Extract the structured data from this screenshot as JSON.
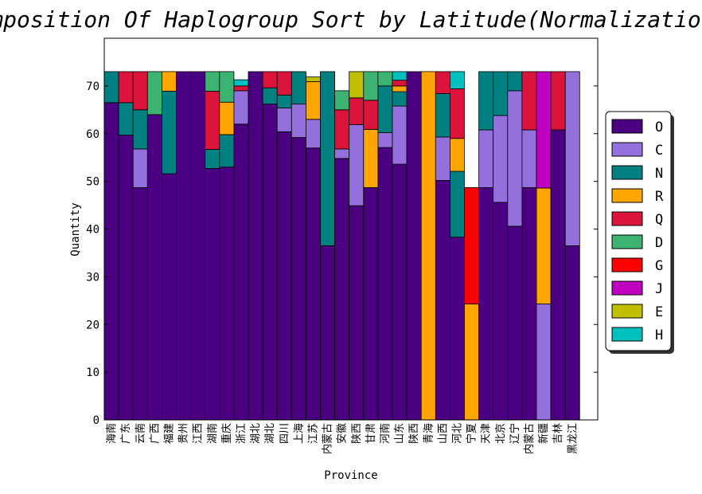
{
  "chart_data": {
    "type": "bar",
    "stacked": true,
    "title": "Composition Of Haplogroup  Sort by Latitude(Normalization)",
    "xlabel": "Province",
    "ylabel": "Quantity",
    "ylim": [
      0,
      80
    ],
    "yticks": [
      0,
      10,
      20,
      30,
      40,
      50,
      60,
      70
    ],
    "grid": false,
    "legend_position": "right",
    "categories": [
      "海南",
      "广东",
      "云南",
      "广西",
      "福建",
      "贵州",
      "江西",
      "湖南",
      "重庆",
      "浙江",
      "湖北",
      "湖北",
      "四川",
      "上海",
      "江苏",
      "内蒙古",
      "安徽",
      "陕西",
      "甘肃",
      "河南",
      "山东",
      "陕西",
      "青海",
      "山西",
      "河北",
      "宁夏",
      "天津",
      "北京",
      "辽宁",
      "内蒙古",
      "新疆",
      "吉林",
      "黑龙江"
    ],
    "series": [
      {
        "name": "O",
        "color": "#4b0082",
        "values": [
          66.5,
          59.7,
          48.7,
          64.0,
          51.6,
          73.0,
          73.0,
          52.7,
          53.0,
          62.0,
          73.0,
          66.2,
          60.4,
          59.2,
          57.0,
          36.5,
          54.8,
          44.9,
          48.7,
          57.1,
          53.6,
          73.0,
          0,
          50.2,
          38.3,
          0,
          48.7,
          45.6,
          40.6,
          48.7,
          0,
          60.8,
          36.5
        ]
      },
      {
        "name": "C",
        "color": "#9370db",
        "values": [
          0,
          0,
          8.1,
          0,
          0,
          0,
          0,
          0,
          0,
          7.0,
          0,
          0,
          5.0,
          7.0,
          6.0,
          0,
          2.0,
          17.0,
          0,
          3.1,
          12.2,
          0,
          0,
          9.1,
          0,
          0,
          12.1,
          18.2,
          28.4,
          12.1,
          24.3,
          0,
          36.5
        ]
      },
      {
        "name": "N",
        "color": "#008080",
        "values": [
          6.5,
          6.8,
          8.2,
          0,
          17.3,
          0,
          0,
          4.0,
          6.8,
          0,
          0,
          3.4,
          2.7,
          6.8,
          0,
          36.5,
          0,
          0,
          0,
          9.8,
          3.0,
          0,
          0,
          9.1,
          13.8,
          0,
          12.2,
          9.2,
          4.0,
          0,
          0,
          0,
          0
        ]
      },
      {
        "name": "R",
        "color": "#ffa500",
        "values": [
          0,
          0,
          0,
          0,
          4.1,
          0,
          0,
          0,
          6.8,
          0,
          0,
          0,
          0,
          0,
          7.9,
          0,
          0,
          0,
          12.2,
          0,
          1.2,
          0,
          73.0,
          0,
          6.9,
          24.3,
          0,
          0,
          0,
          0,
          24.3,
          0,
          0
        ]
      },
      {
        "name": "Q",
        "color": "#dc143c",
        "values": [
          0,
          6.5,
          8.0,
          0,
          0,
          0,
          0,
          12.2,
          0,
          1.0,
          0,
          3.4,
          4.9,
          0,
          0,
          0,
          8.2,
          5.6,
          6.1,
          0,
          1.2,
          0,
          0,
          4.6,
          10.4,
          0,
          0,
          0,
          0,
          12.2,
          0,
          12.2,
          0
        ]
      },
      {
        "name": "D",
        "color": "#3cb371",
        "values": [
          0,
          0,
          0,
          9.0,
          0,
          0,
          0,
          4.1,
          6.4,
          0,
          0,
          0,
          0,
          0,
          0,
          0,
          4.0,
          0,
          6.0,
          3.0,
          0,
          0,
          0,
          0,
          0,
          0,
          0,
          0,
          0,
          0,
          0,
          0,
          0
        ]
      },
      {
        "name": "G",
        "color": "#ff0000",
        "values": [
          0,
          0,
          0,
          0,
          0,
          0,
          0,
          0,
          0,
          0,
          0,
          0,
          0,
          0,
          0,
          0,
          0,
          0,
          0,
          0,
          0,
          0,
          0,
          0,
          0,
          24.4,
          0,
          0,
          0,
          0,
          0,
          0,
          0
        ]
      },
      {
        "name": "J",
        "color": "#c000c0",
        "values": [
          0,
          0,
          0,
          0,
          0,
          0,
          0,
          0,
          0,
          0,
          0,
          0,
          0,
          0,
          0,
          0,
          0,
          0,
          0,
          0,
          0,
          0,
          0,
          0,
          0,
          0,
          0,
          0,
          0,
          0,
          24.4,
          0,
          0
        ]
      },
      {
        "name": "E",
        "color": "#bfbf00",
        "values": [
          0,
          0,
          0,
          0,
          0,
          0,
          0,
          0,
          0,
          0,
          0,
          0,
          0,
          0,
          1.0,
          0,
          0,
          5.5,
          0,
          0,
          0,
          0,
          0,
          0,
          0,
          0,
          0,
          0,
          0,
          0,
          0,
          0,
          0
        ]
      },
      {
        "name": "H",
        "color": "#00bfbf",
        "values": [
          0,
          0,
          0,
          0,
          0,
          0,
          0,
          0,
          0,
          1.3,
          0,
          0,
          0,
          0,
          0,
          0,
          0,
          0,
          0,
          0,
          1.8,
          0,
          0,
          0,
          3.6,
          0,
          0,
          0,
          0,
          0,
          0,
          0,
          0
        ]
      }
    ]
  }
}
